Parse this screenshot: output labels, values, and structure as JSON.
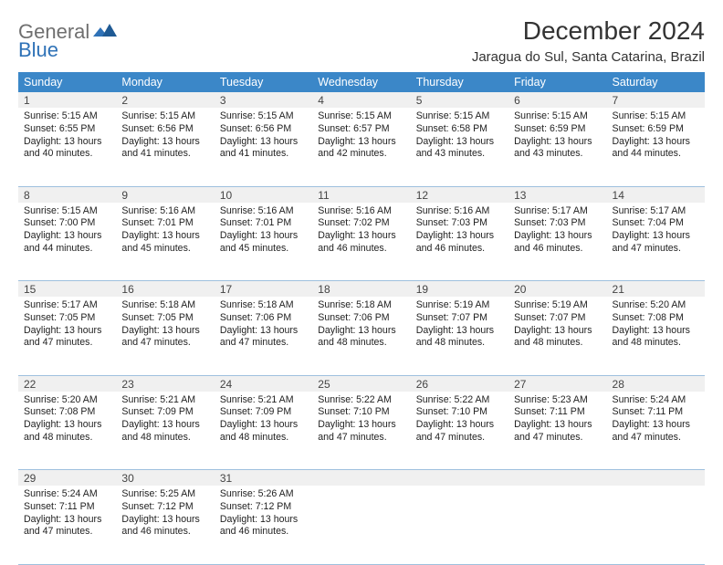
{
  "logo": {
    "part1": "General",
    "part2": "Blue"
  },
  "title": "December 2024",
  "location": "Jaragua do Sul, Santa Catarina, Brazil",
  "weekdays": [
    "Sunday",
    "Monday",
    "Tuesday",
    "Wednesday",
    "Thursday",
    "Friday",
    "Saturday"
  ],
  "colors": {
    "header_bg": "#3b87c8",
    "header_text": "#ffffff",
    "daynum_bg": "#f0f0f0",
    "rule": "#9ec0de",
    "logo_gray": "#6f6f6f",
    "logo_blue": "#2f72b7"
  },
  "labels": {
    "sunrise": "Sunrise:",
    "sunset": "Sunset:",
    "daylight": "Daylight:"
  },
  "weeks": [
    [
      {
        "n": "1",
        "sr": "5:15 AM",
        "ss": "6:55 PM",
        "dl": "13 hours and 40 minutes."
      },
      {
        "n": "2",
        "sr": "5:15 AM",
        "ss": "6:56 PM",
        "dl": "13 hours and 41 minutes."
      },
      {
        "n": "3",
        "sr": "5:15 AM",
        "ss": "6:56 PM",
        "dl": "13 hours and 41 minutes."
      },
      {
        "n": "4",
        "sr": "5:15 AM",
        "ss": "6:57 PM",
        "dl": "13 hours and 42 minutes."
      },
      {
        "n": "5",
        "sr": "5:15 AM",
        "ss": "6:58 PM",
        "dl": "13 hours and 43 minutes."
      },
      {
        "n": "6",
        "sr": "5:15 AM",
        "ss": "6:59 PM",
        "dl": "13 hours and 43 minutes."
      },
      {
        "n": "7",
        "sr": "5:15 AM",
        "ss": "6:59 PM",
        "dl": "13 hours and 44 minutes."
      }
    ],
    [
      {
        "n": "8",
        "sr": "5:15 AM",
        "ss": "7:00 PM",
        "dl": "13 hours and 44 minutes."
      },
      {
        "n": "9",
        "sr": "5:16 AM",
        "ss": "7:01 PM",
        "dl": "13 hours and 45 minutes."
      },
      {
        "n": "10",
        "sr": "5:16 AM",
        "ss": "7:01 PM",
        "dl": "13 hours and 45 minutes."
      },
      {
        "n": "11",
        "sr": "5:16 AM",
        "ss": "7:02 PM",
        "dl": "13 hours and 46 minutes."
      },
      {
        "n": "12",
        "sr": "5:16 AM",
        "ss": "7:03 PM",
        "dl": "13 hours and 46 minutes."
      },
      {
        "n": "13",
        "sr": "5:17 AM",
        "ss": "7:03 PM",
        "dl": "13 hours and 46 minutes."
      },
      {
        "n": "14",
        "sr": "5:17 AM",
        "ss": "7:04 PM",
        "dl": "13 hours and 47 minutes."
      }
    ],
    [
      {
        "n": "15",
        "sr": "5:17 AM",
        "ss": "7:05 PM",
        "dl": "13 hours and 47 minutes."
      },
      {
        "n": "16",
        "sr": "5:18 AM",
        "ss": "7:05 PM",
        "dl": "13 hours and 47 minutes."
      },
      {
        "n": "17",
        "sr": "5:18 AM",
        "ss": "7:06 PM",
        "dl": "13 hours and 47 minutes."
      },
      {
        "n": "18",
        "sr": "5:18 AM",
        "ss": "7:06 PM",
        "dl": "13 hours and 48 minutes."
      },
      {
        "n": "19",
        "sr": "5:19 AM",
        "ss": "7:07 PM",
        "dl": "13 hours and 48 minutes."
      },
      {
        "n": "20",
        "sr": "5:19 AM",
        "ss": "7:07 PM",
        "dl": "13 hours and 48 minutes."
      },
      {
        "n": "21",
        "sr": "5:20 AM",
        "ss": "7:08 PM",
        "dl": "13 hours and 48 minutes."
      }
    ],
    [
      {
        "n": "22",
        "sr": "5:20 AM",
        "ss": "7:08 PM",
        "dl": "13 hours and 48 minutes."
      },
      {
        "n": "23",
        "sr": "5:21 AM",
        "ss": "7:09 PM",
        "dl": "13 hours and 48 minutes."
      },
      {
        "n": "24",
        "sr": "5:21 AM",
        "ss": "7:09 PM",
        "dl": "13 hours and 48 minutes."
      },
      {
        "n": "25",
        "sr": "5:22 AM",
        "ss": "7:10 PM",
        "dl": "13 hours and 47 minutes."
      },
      {
        "n": "26",
        "sr": "5:22 AM",
        "ss": "7:10 PM",
        "dl": "13 hours and 47 minutes."
      },
      {
        "n": "27",
        "sr": "5:23 AM",
        "ss": "7:11 PM",
        "dl": "13 hours and 47 minutes."
      },
      {
        "n": "28",
        "sr": "5:24 AM",
        "ss": "7:11 PM",
        "dl": "13 hours and 47 minutes."
      }
    ],
    [
      {
        "n": "29",
        "sr": "5:24 AM",
        "ss": "7:11 PM",
        "dl": "13 hours and 47 minutes."
      },
      {
        "n": "30",
        "sr": "5:25 AM",
        "ss": "7:12 PM",
        "dl": "13 hours and 46 minutes."
      },
      {
        "n": "31",
        "sr": "5:26 AM",
        "ss": "7:12 PM",
        "dl": "13 hours and 46 minutes."
      },
      null,
      null,
      null,
      null
    ]
  ]
}
